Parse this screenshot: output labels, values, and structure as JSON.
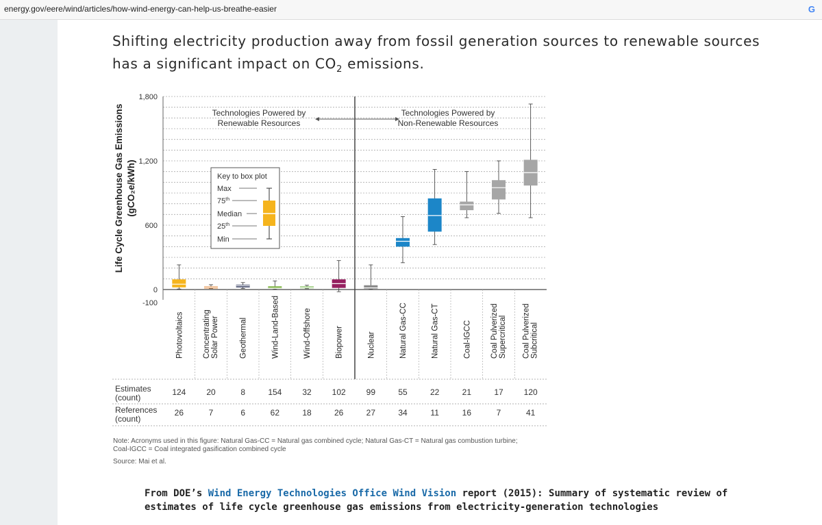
{
  "browser": {
    "url": "energy.gov/eere/wind/articles/how-wind-energy-can-help-us-breathe-easier",
    "icon": "google-icon"
  },
  "article": {
    "intro_part1": "Shifting electricity production away from fossil generation sources to renewable sources has a significant impact on CO",
    "intro_sub": "2",
    "intro_part2": " emissions.",
    "caption_prefix": "From DOE’s ",
    "caption_link": "Wind Energy Technologies Office Wind Vision",
    "caption_suffix": " report (2015): Summary of systematic review of estimates of life cycle greenhouse gas emissions from electricity-generation technologies"
  },
  "chart_data": {
    "type": "boxplot",
    "ylabel_line1": "Life Cycle Greenhouse Gas Emissions",
    "ylabel_line2": "(gCO₂e/kWh)",
    "ylim": [
      -100,
      1800
    ],
    "yticks": [
      {
        "value": 1800,
        "label": "1,800"
      },
      {
        "value": 1200,
        "label": "1,200"
      },
      {
        "value": 600,
        "label": "600"
      },
      {
        "value": 0,
        "label": "0"
      },
      {
        "value": -100,
        "label": "-100"
      }
    ],
    "group_labels": {
      "renewable_line1": "Technologies Powered by",
      "renewable_line2": "Renewable Resources",
      "nonrenewable_line1": "Technologies Powered by",
      "nonrenewable_line2": "Non-Renewable Resources"
    },
    "key": {
      "title": "Key to box plot",
      "max": "Max",
      "p75": "75",
      "p75_sup": "th",
      "median": "Median",
      "p25": "25",
      "p25_sup": "th",
      "min": "Min"
    },
    "categories": [
      {
        "line1": "Photovoltaics",
        "line2": "",
        "min": 5,
        "q1": 20,
        "median": 50,
        "q3": 95,
        "max": 230,
        "color": "#f5b41d",
        "estimates": "124",
        "references": "26"
      },
      {
        "line1": "Concentrating",
        "line2": "Solar Power",
        "min": 10,
        "q1": 15,
        "median": 22,
        "q3": 30,
        "max": 45,
        "color": "#e58a3c",
        "estimates": "20",
        "references": "7"
      },
      {
        "line1": "Geothermal",
        "line2": "",
        "min": 10,
        "q1": 20,
        "median": 35,
        "q3": 45,
        "max": 65,
        "color": "#434b6c",
        "estimates": "8",
        "references": "6"
      },
      {
        "line1": "Wind-Land-Based",
        "line2": "",
        "min": 2,
        "q1": 8,
        "median": 12,
        "q3": 30,
        "max": 80,
        "color": "#7db342",
        "estimates": "154",
        "references": "62"
      },
      {
        "line1": "Wind-Offshore",
        "line2": "",
        "min": 8,
        "q1": 12,
        "median": 18,
        "q3": 30,
        "max": 40,
        "color": "#8cc46a",
        "estimates": "32",
        "references": "18"
      },
      {
        "line1": "Biopower",
        "line2": "",
        "min": -20,
        "q1": 15,
        "median": 55,
        "q3": 95,
        "max": 270,
        "color": "#962060",
        "estimates": "102",
        "references": "26"
      },
      {
        "line1": "Nuclear",
        "line2": "",
        "min": 2,
        "q1": 5,
        "median": 15,
        "q3": 40,
        "max": 230,
        "color": "#8c8c8c",
        "estimates": "99",
        "references": "27"
      },
      {
        "line1": "Natural Gas-CC",
        "line2": "",
        "min": 250,
        "q1": 400,
        "median": 450,
        "q3": 480,
        "max": 680,
        "color": "#1c86c8",
        "estimates": "55",
        "references": "34"
      },
      {
        "line1": "Natural Gas-CT",
        "line2": "",
        "min": 420,
        "q1": 540,
        "median": 690,
        "q3": 850,
        "max": 1120,
        "color": "#1c86c8",
        "estimates": "22",
        "references": "11"
      },
      {
        "line1": "Coal-IGCC",
        "line2": "",
        "min": 670,
        "q1": 740,
        "median": 790,
        "q3": 820,
        "max": 1100,
        "color": "#a6a6a6",
        "estimates": "21",
        "references": "16"
      },
      {
        "line1": "Coal Pulverized",
        "line2": "Supercritical",
        "min": 710,
        "q1": 840,
        "median": 950,
        "q3": 1020,
        "max": 1200,
        "color": "#a6a6a6",
        "estimates": "17",
        "references": "7"
      },
      {
        "line1": "Coal Pulverized",
        "line2": "Subcritical",
        "min": 670,
        "q1": 970,
        "median": 1090,
        "q3": 1210,
        "max": 1730,
        "color": "#a6a6a6",
        "estimates": "120",
        "references": "41"
      }
    ],
    "table": {
      "estimates_line1": "Estimates",
      "estimates_line2": "(count)",
      "references_line1": "References",
      "references_line2": "(count)"
    },
    "note_line1": "Note: Acronyms used in this figure: Natural Gas-CC = Natural gas combined cycle; Natural Gas-CT = Natural gas combustion turbine;",
    "note_line2": "Coal-IGCC = Coal integrated gasification combined cycle",
    "source": "Source: Mai et al."
  }
}
